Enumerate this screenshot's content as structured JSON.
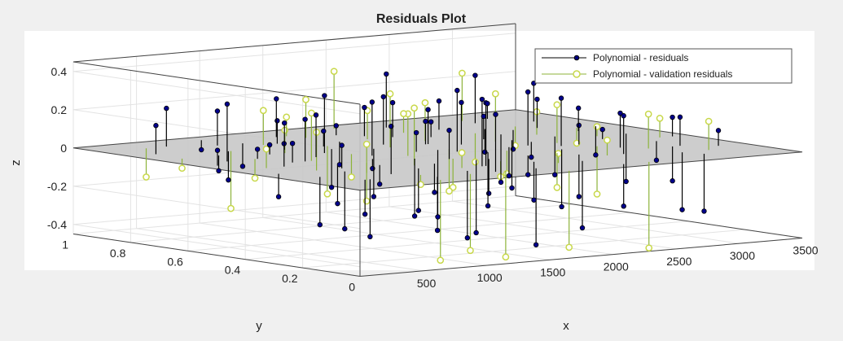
{
  "figure": {
    "background": "#f0f0f0",
    "axes_background": "#ffffff"
  },
  "chart_data": {
    "type": "scatter",
    "subtype": "3d-stem",
    "title": "Residuals Plot",
    "xlabel": "x",
    "ylabel": "y",
    "zlabel": "z",
    "xlim": [
      0,
      3500
    ],
    "ylim": [
      0,
      1
    ],
    "zlim": [
      -0.45,
      0.45
    ],
    "x_ticks": [
      500,
      1000,
      1500,
      2000,
      2500,
      3000,
      3500
    ],
    "y_ticks": [
      0,
      0.2,
      0.4,
      0.6,
      0.8,
      1
    ],
    "z_ticks": [
      -0.4,
      -0.2,
      0,
      0.2,
      0.4
    ],
    "x_tick_labels": [
      "500",
      "1000",
      "1500",
      "2000",
      "2500",
      "3000",
      "3500"
    ],
    "y_tick_labels": [
      "0",
      "0.2",
      "0.4",
      "0.6",
      "0.8",
      "1"
    ],
    "z_tick_labels": [
      "-0.4",
      "-0.2",
      "0",
      "0.2",
      "0.4"
    ],
    "grid": true,
    "zero_plane": {
      "z": 0,
      "color": "#c8c8c8"
    },
    "legend": {
      "placement": "top-right",
      "entries": [
        "Polynomial - residuals",
        "Polynomial - validation residuals"
      ]
    },
    "series": [
      {
        "name": "Polynomial - residuals",
        "color": "#000000",
        "marker_color": "#00008b",
        "marker": "filled-point",
        "x": [
          120,
          150,
          200,
          250,
          310,
          380,
          420,
          470,
          510,
          560,
          600,
          660,
          700,
          730,
          760,
          800,
          840,
          900,
          950,
          990,
          1030,
          1080,
          1120,
          1160,
          1190,
          1230,
          1270,
          1300,
          1340,
          1380,
          1420,
          1470,
          1500,
          1540,
          1580,
          1620,
          1660,
          1700,
          1740,
          1790,
          1830,
          1880,
          1920,
          1960,
          2010,
          2050,
          2100,
          2150,
          2200,
          2250,
          2300,
          2340,
          2390,
          2440,
          2490,
          2540,
          2590,
          2640,
          2690,
          2740,
          2790,
          2840,
          2890,
          2940,
          2990,
          3040,
          3090,
          3140,
          3190,
          3240,
          3290,
          3340,
          3380,
          420,
          700,
          1000,
          1300,
          1600,
          1900,
          2200,
          2500,
          2800,
          3100,
          900,
          1450,
          1750,
          2350,
          2950,
          650,
          1250,
          1850,
          2450,
          3050,
          550
        ],
        "y": [
          0.55,
          0.35,
          0.8,
          0.25,
          0.6,
          0.15,
          0.45,
          0.7,
          0.9,
          0.3,
          0.5,
          0.75,
          0.2,
          0.4,
          0.65,
          0.85,
          0.1,
          0.55,
          0.35,
          0.7,
          0.25,
          0.6,
          0.45,
          0.8,
          0.15,
          0.5,
          0.3,
          0.7,
          0.4,
          0.9,
          0.2,
          0.6,
          0.35,
          0.75,
          0.5,
          0.1,
          0.65,
          0.3,
          0.85,
          0.45,
          0.2,
          0.6,
          0.4,
          0.75,
          0.3,
          0.55,
          0.15,
          0.7,
          0.45,
          0.9,
          0.25,
          0.6,
          0.35,
          0.8,
          0.5,
          0.2,
          0.65,
          0.4,
          0.75,
          0.3,
          0.55,
          0.85,
          0.15,
          0.45,
          0.7,
          0.25,
          0.6,
          0.35,
          0.8,
          0.5,
          0.2,
          0.65,
          0.4,
          0.15,
          0.5,
          0.85,
          0.1,
          0.3,
          0.6,
          0.05,
          0.4,
          0.7,
          0.25,
          0.95,
          0.2,
          0.5,
          0.45,
          0.1,
          0.35,
          0.65,
          0.8,
          0.55,
          0.9,
          0.6
        ],
        "z": [
          0.08,
          -0.12,
          0.15,
          -0.25,
          0.3,
          -0.18,
          0.12,
          -0.08,
          0.2,
          -0.3,
          0.1,
          -0.15,
          0.25,
          -0.2,
          0.05,
          0.18,
          -0.28,
          0.22,
          -0.1,
          0.14,
          -0.22,
          0.3,
          -0.05,
          0.12,
          -0.35,
          0.28,
          -0.15,
          0.08,
          -0.3,
          0.2,
          0.35,
          -0.25,
          0.15,
          -0.12,
          0.1,
          -0.4,
          0.25,
          -0.18,
          0.05,
          0.32,
          -0.2,
          0.12,
          -0.28,
          0.18,
          -0.1,
          0.22,
          -0.35,
          0.08,
          -0.15,
          0.28,
          -0.22,
          0.12,
          -0.3,
          0.15,
          -0.08,
          0.2,
          -0.25,
          0.1,
          -0.12,
          0.18,
          -0.2,
          0.25,
          -0.3,
          0.05,
          0.15,
          -0.18,
          0.12,
          -0.1,
          0.2,
          -0.25,
          0.08,
          -0.15,
          0.1,
          -0.3,
          0.22,
          -0.12,
          0.3,
          -0.38,
          0.18,
          -0.22,
          0.25,
          -0.1,
          0.15,
          -0.05,
          0.33,
          -0.35,
          0.28,
          -0.3,
          0.12,
          -0.2,
          0.15,
          -0.25,
          0.08,
          0.05
        ]
      },
      {
        "name": "Polynomial - validation residuals",
        "color": "#8db33a",
        "marker_color": "#c8d84a",
        "marker": "open-circle",
        "x": [
          180,
          280,
          350,
          450,
          530,
          620,
          680,
          750,
          820,
          880,
          960,
          1050,
          1110,
          1180,
          1260,
          1330,
          1400,
          1460,
          1530,
          1600,
          1680,
          1760,
          1840,
          1910,
          1990,
          2070,
          2160,
          2240,
          2320,
          2410,
          2500,
          2580,
          2670,
          2760,
          2850,
          2930,
          3010,
          3100,
          3190,
          3280,
          750,
          1100,
          1500,
          1950,
          2400,
          2850,
          1380,
          1700
        ],
        "y": [
          0.7,
          0.45,
          0.9,
          0.35,
          0.6,
          0.25,
          0.75,
          0.5,
          0.15,
          0.65,
          0.4,
          0.8,
          0.3,
          0.55,
          0.2,
          0.7,
          0.45,
          0.9,
          0.35,
          0.6,
          0.25,
          0.75,
          0.5,
          0.15,
          0.65,
          0.4,
          0.8,
          0.3,
          0.55,
          0.2,
          0.7,
          0.45,
          0.35,
          0.6,
          0.25,
          0.75,
          0.5,
          0.15,
          0.65,
          0.4,
          0.05,
          0.1,
          0.85,
          0.95,
          0.05,
          0.9,
          0.1,
          0.02
        ],
        "z": [
          -0.05,
          0.1,
          -0.15,
          0.2,
          -0.1,
          0.15,
          -0.3,
          0.25,
          -0.05,
          0.12,
          -0.2,
          0.18,
          0.3,
          -0.12,
          0.08,
          -0.25,
          0.22,
          0.1,
          -0.15,
          0.28,
          -0.08,
          0.15,
          -0.22,
          0.05,
          0.2,
          -0.12,
          0.1,
          -0.18,
          0.25,
          0.08,
          -0.15,
          0.2,
          -0.25,
          0.12,
          0.18,
          -0.1,
          0.05,
          0.15,
          -0.08,
          0.1,
          -0.42,
          -0.4,
          0.2,
          0.3,
          -0.45,
          0.25,
          -0.45,
          -0.4
        ]
      }
    ]
  }
}
